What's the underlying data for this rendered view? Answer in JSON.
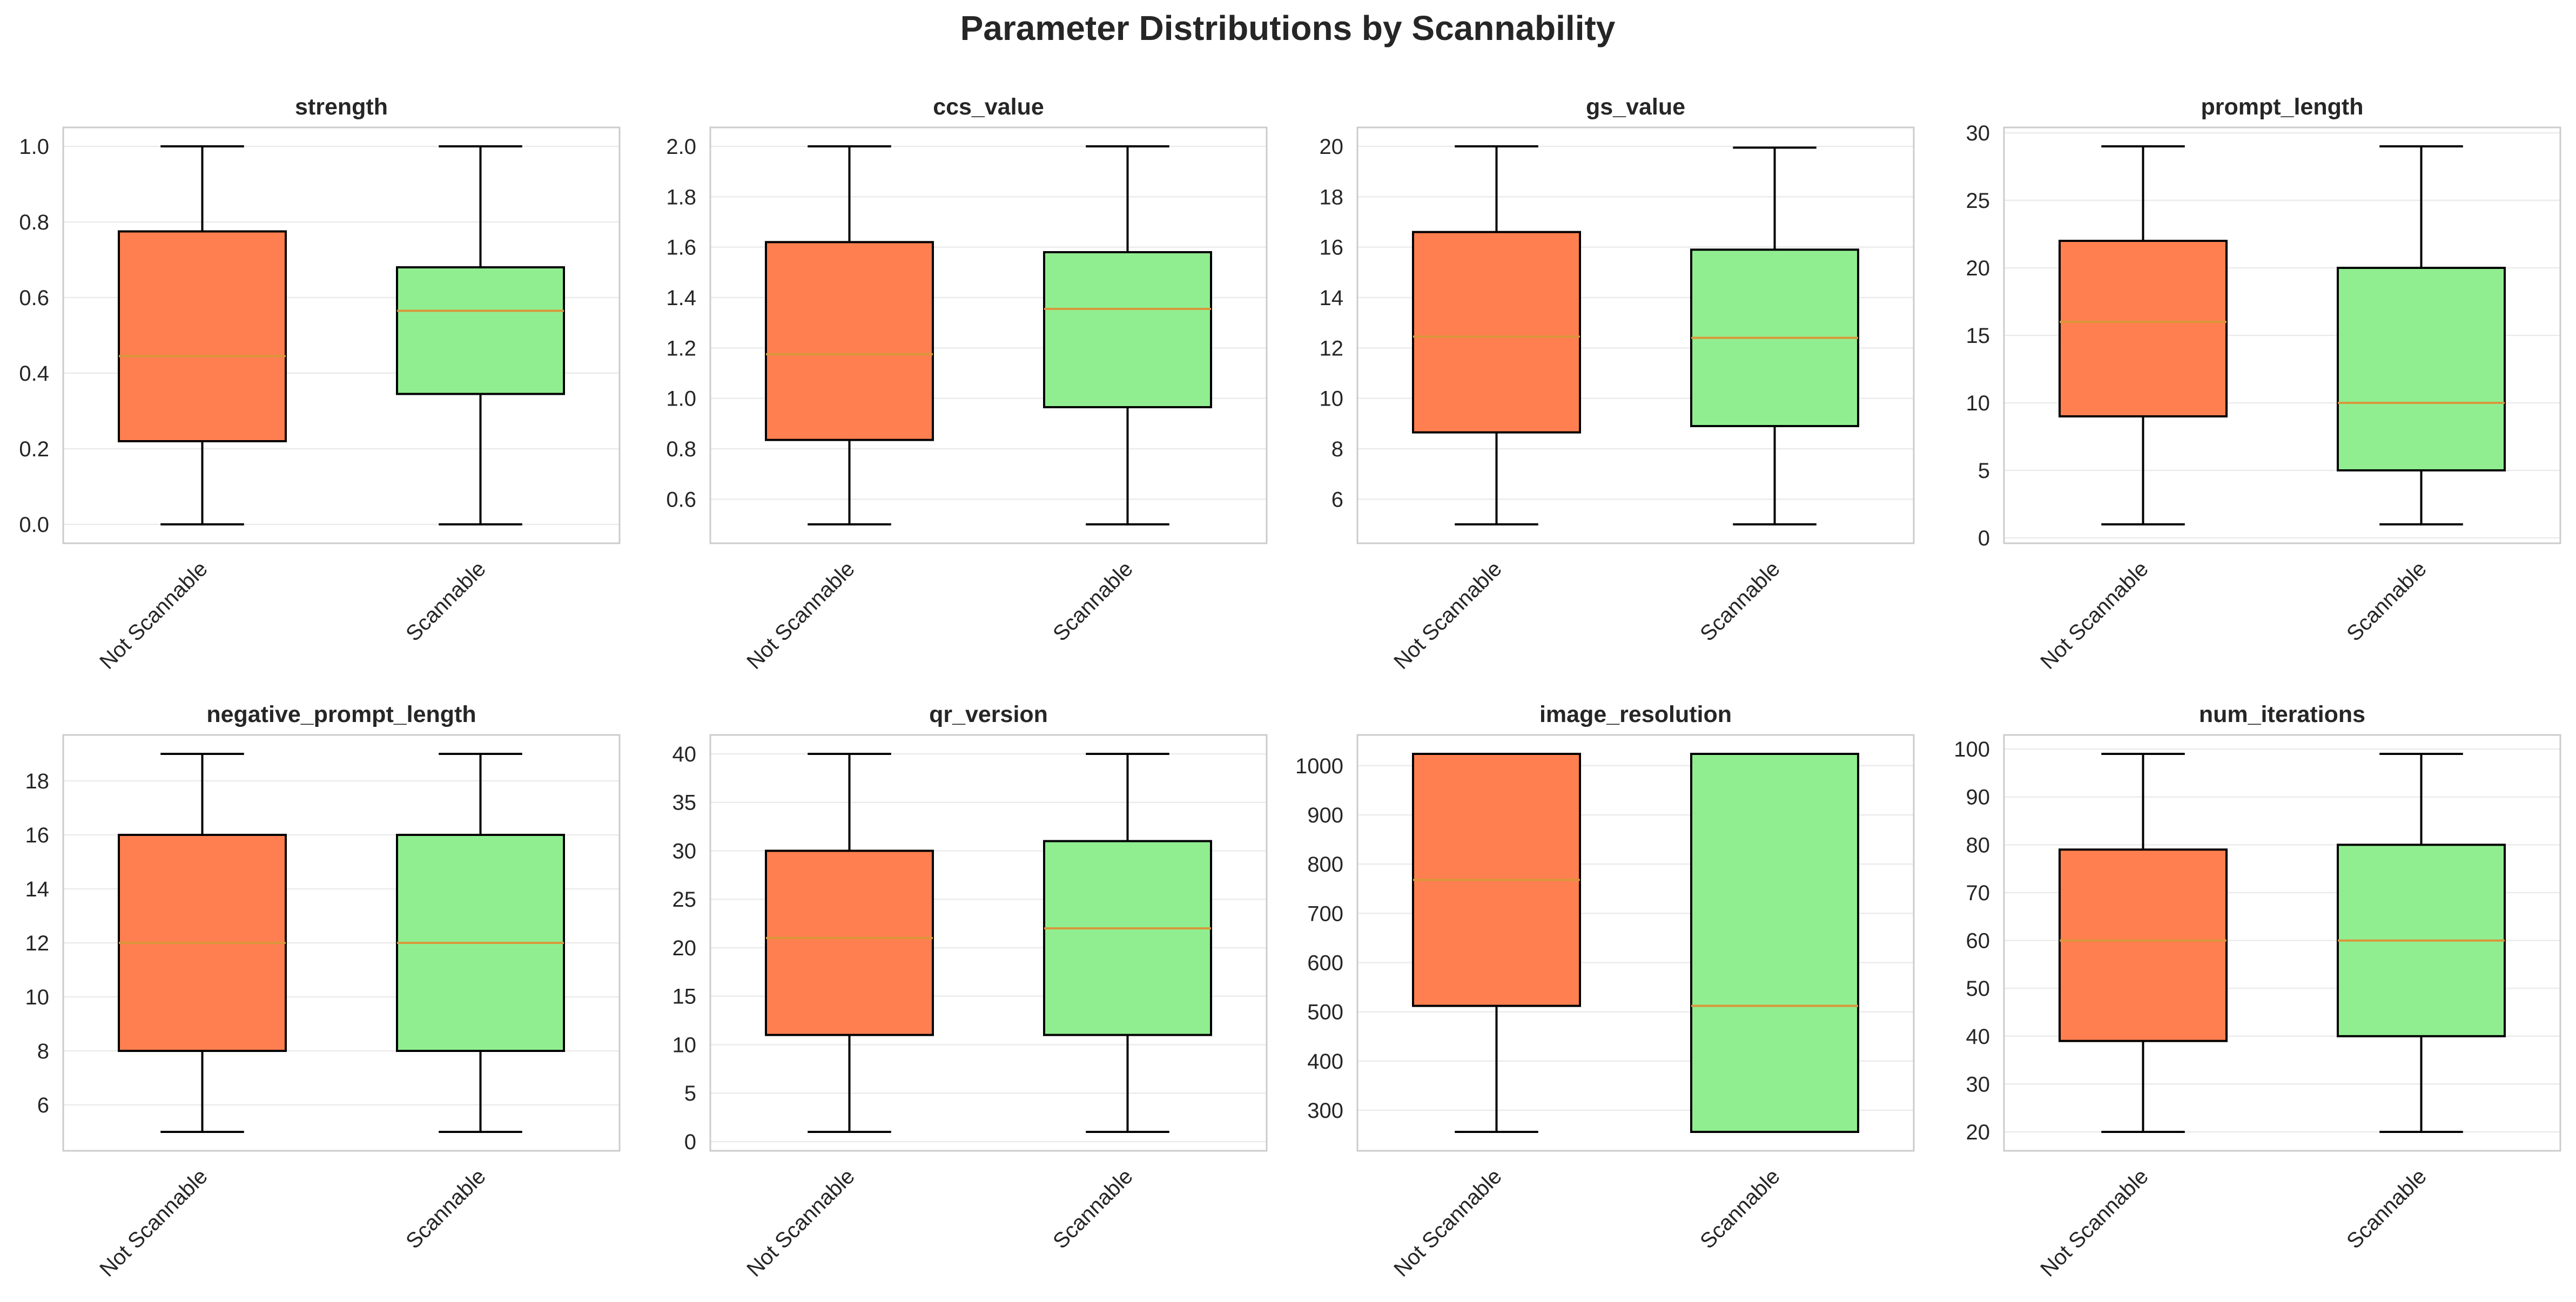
{
  "figure": {
    "title": "Parameter Distributions by Scannability"
  },
  "colors": {
    "not_scannable": "#ff7f50",
    "scannable": "#90ee90",
    "median": "#d9973a",
    "edge": "#000000",
    "grid": "#ebebeb",
    "frame": "#cccccc"
  },
  "chart_data": [
    {
      "type": "box",
      "title": "strength",
      "categories": [
        "Not Scannable",
        "Scannable"
      ],
      "ylim": [
        -0.05,
        1.05
      ],
      "yticks": [
        0.0,
        0.2,
        0.4,
        0.6,
        0.8,
        1.0
      ],
      "ytick_labels": [
        "0.0",
        "0.2",
        "0.4",
        "0.6",
        "0.8",
        "1.0"
      ],
      "boxes": [
        {
          "name": "Not Scannable",
          "whislo": 0.0,
          "q1": 0.22,
          "med": 0.445,
          "q3": 0.775,
          "whishi": 1.0
        },
        {
          "name": "Scannable",
          "whislo": 0.0,
          "q1": 0.345,
          "med": 0.565,
          "q3": 0.68,
          "whishi": 1.0
        }
      ]
    },
    {
      "type": "box",
      "title": "ccs_value",
      "categories": [
        "Not Scannable",
        "Scannable"
      ],
      "ylim": [
        0.425,
        2.075
      ],
      "yticks": [
        0.6,
        0.8,
        1.0,
        1.2,
        1.4,
        1.6,
        1.8,
        2.0
      ],
      "ytick_labels": [
        "0.6",
        "0.8",
        "1.0",
        "1.2",
        "1.4",
        "1.6",
        "1.8",
        "2.0"
      ],
      "boxes": [
        {
          "name": "Not Scannable",
          "whislo": 0.5,
          "q1": 0.835,
          "med": 1.175,
          "q3": 1.62,
          "whishi": 2.0
        },
        {
          "name": "Scannable",
          "whislo": 0.5,
          "q1": 0.965,
          "med": 1.355,
          "q3": 1.58,
          "whishi": 2.0
        }
      ]
    },
    {
      "type": "box",
      "title": "gs_value",
      "categories": [
        "Not Scannable",
        "Scannable"
      ],
      "ylim": [
        4.25,
        20.75
      ],
      "yticks": [
        6,
        8,
        10,
        12,
        14,
        16,
        18,
        20
      ],
      "ytick_labels": [
        "6",
        "8",
        "10",
        "12",
        "14",
        "16",
        "18",
        "20"
      ],
      "boxes": [
        {
          "name": "Not Scannable",
          "whislo": 5.0,
          "q1": 8.65,
          "med": 12.45,
          "q3": 16.6,
          "whishi": 20.0
        },
        {
          "name": "Scannable",
          "whislo": 5.0,
          "q1": 8.9,
          "med": 12.4,
          "q3": 15.9,
          "whishi": 19.95
        }
      ]
    },
    {
      "type": "box",
      "title": "prompt_length",
      "categories": [
        "Not Scannable",
        "Scannable"
      ],
      "ylim": [
        -0.4,
        30.4
      ],
      "yticks": [
        0,
        5,
        10,
        15,
        20,
        25,
        30
      ],
      "ytick_labels": [
        "0",
        "5",
        "10",
        "15",
        "20",
        "25",
        "30"
      ],
      "boxes": [
        {
          "name": "Not Scannable",
          "whislo": 1,
          "q1": 9,
          "med": 16,
          "q3": 22,
          "whishi": 29
        },
        {
          "name": "Scannable",
          "whislo": 1,
          "q1": 5,
          "med": 10,
          "q3": 20,
          "whishi": 29
        }
      ]
    },
    {
      "type": "box",
      "title": "negative_prompt_length",
      "categories": [
        "Not Scannable",
        "Scannable"
      ],
      "ylim": [
        4.3,
        19.7
      ],
      "yticks": [
        6,
        8,
        10,
        12,
        14,
        16,
        18
      ],
      "ytick_labels": [
        "6",
        "8",
        "10",
        "12",
        "14",
        "16",
        "18"
      ],
      "boxes": [
        {
          "name": "Not Scannable",
          "whislo": 5,
          "q1": 8,
          "med": 12,
          "q3": 16,
          "whishi": 19
        },
        {
          "name": "Scannable",
          "whislo": 5,
          "q1": 8,
          "med": 12,
          "q3": 16,
          "whishi": 19
        }
      ]
    },
    {
      "type": "box",
      "title": "qr_version",
      "categories": [
        "Not Scannable",
        "Scannable"
      ],
      "ylim": [
        -0.95,
        41.95
      ],
      "yticks": [
        0,
        5,
        10,
        15,
        20,
        25,
        30,
        35,
        40
      ],
      "ytick_labels": [
        "0",
        "5",
        "10",
        "15",
        "20",
        "25",
        "30",
        "35",
        "40"
      ],
      "boxes": [
        {
          "name": "Not Scannable",
          "whislo": 1,
          "q1": 11,
          "med": 21,
          "q3": 30,
          "whishi": 40
        },
        {
          "name": "Scannable",
          "whislo": 1,
          "q1": 11,
          "med": 22,
          "q3": 31,
          "whishi": 40
        }
      ]
    },
    {
      "type": "box",
      "title": "image_resolution",
      "categories": [
        "Not Scannable",
        "Scannable"
      ],
      "ylim": [
        217.6,
        1062.4
      ],
      "yticks": [
        300,
        400,
        500,
        600,
        700,
        800,
        900,
        1000
      ],
      "ytick_labels": [
        "300",
        "400",
        "500",
        "600",
        "700",
        "800",
        "900",
        "1000"
      ],
      "boxes": [
        {
          "name": "Not Scannable",
          "whislo": 256,
          "q1": 512,
          "med": 768,
          "q3": 1024,
          "whishi": 1024
        },
        {
          "name": "Scannable",
          "whislo": 256,
          "q1": 256,
          "med": 512,
          "q3": 1024,
          "whishi": 1024
        }
      ]
    },
    {
      "type": "box",
      "title": "num_iterations",
      "categories": [
        "Not Scannable",
        "Scannable"
      ],
      "ylim": [
        16.05,
        102.95
      ],
      "yticks": [
        20,
        30,
        40,
        50,
        60,
        70,
        80,
        90,
        100
      ],
      "ytick_labels": [
        "20",
        "30",
        "40",
        "50",
        "60",
        "70",
        "80",
        "90",
        "100"
      ],
      "boxes": [
        {
          "name": "Not Scannable",
          "whislo": 20,
          "q1": 39,
          "med": 60,
          "q3": 79,
          "whishi": 99
        },
        {
          "name": "Scannable",
          "whislo": 20,
          "q1": 40,
          "med": 60,
          "q3": 80,
          "whishi": 99
        }
      ]
    }
  ]
}
